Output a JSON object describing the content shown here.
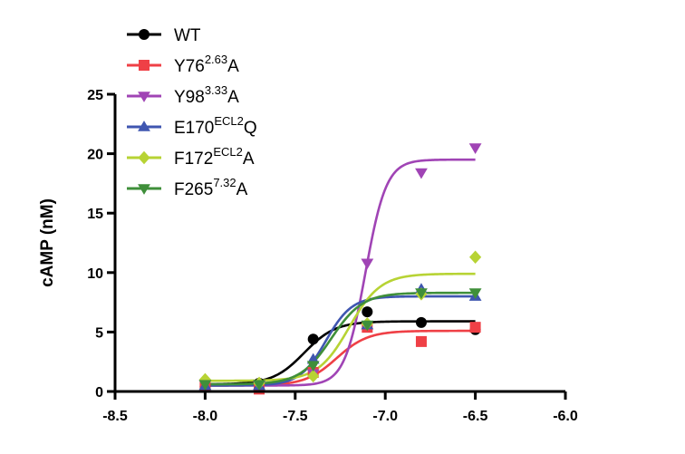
{
  "chart_data": {
    "type": "scatter",
    "xlabel": "",
    "ylabel": "cAMP (nM)",
    "xlim": [
      -8.5,
      -6.0
    ],
    "ylim": [
      0,
      25
    ],
    "xticks": [
      -8.5,
      -8.0,
      -7.5,
      -7.0,
      -6.5,
      -6.0
    ],
    "xtick_labels": [
      "-8.5",
      "-8.0",
      "-7.5",
      "-7.0",
      "-6.5",
      "-6.0"
    ],
    "yticks": [
      0,
      5,
      10,
      15,
      20,
      25
    ],
    "ytick_labels": [
      "0",
      "5",
      "10",
      "15",
      "20",
      "25"
    ],
    "legend_position": "top-left",
    "series": [
      {
        "name": "WT",
        "name_sup": "",
        "name_suffix": "",
        "color": "#000000",
        "marker": "circle",
        "x": [
          -8.0,
          -7.7,
          -7.4,
          -7.1,
          -6.8,
          -6.5
        ],
        "y": [
          0.4,
          0.7,
          4.4,
          6.7,
          5.8,
          5.2
        ],
        "fit": {
          "bottom": 0.6,
          "top": 5.9,
          "logec50": -7.45,
          "hill": 5.0
        }
      },
      {
        "name": "Y76",
        "name_sup": "2.63",
        "name_suffix": "A",
        "color": "#ef4046",
        "marker": "square",
        "x": [
          -8.0,
          -7.7,
          -7.4,
          -7.1,
          -6.8,
          -6.5
        ],
        "y": [
          0.5,
          0.2,
          1.6,
          5.4,
          4.2,
          5.4
        ],
        "fit": {
          "bottom": 0.5,
          "top": 5.1,
          "logec50": -7.27,
          "hill": 5.0
        }
      },
      {
        "name": "Y98",
        "name_sup": "3.33",
        "name_suffix": "A",
        "color": "#a044b5",
        "marker": "triangle-down",
        "x": [
          -8.0,
          -7.7,
          -7.4,
          -7.1,
          -6.8,
          -6.5
        ],
        "y": [
          0.6,
          0.5,
          1.5,
          10.8,
          18.4,
          20.5
        ],
        "fit": {
          "bottom": 0.5,
          "top": 19.5,
          "logec50": -7.11,
          "hill": 7.5
        }
      },
      {
        "name": "E170",
        "name_sup": "ECL2",
        "name_suffix": "Q",
        "color": "#3f56b0",
        "marker": "triangle-up",
        "x": [
          -8.0,
          -7.7,
          -7.4,
          -7.1,
          -6.8,
          -6.5
        ],
        "y": [
          0.5,
          0.5,
          2.7,
          5.6,
          8.6,
          8.0
        ],
        "fit": {
          "bottom": 0.5,
          "top": 8.0,
          "logec50": -7.33,
          "hill": 6.0
        }
      },
      {
        "name": "F172",
        "name_sup": "ECL2",
        "name_suffix": "A",
        "color": "#b7d334",
        "marker": "diamond",
        "x": [
          -8.0,
          -7.7,
          -7.4,
          -7.1,
          -6.8,
          -6.5
        ],
        "y": [
          1.0,
          0.7,
          1.3,
          5.7,
          8.2,
          11.3
        ],
        "fit": {
          "bottom": 0.9,
          "top": 9.9,
          "logec50": -7.2,
          "hill": 5.0
        }
      },
      {
        "name": "F265",
        "name_sup": "7.32",
        "name_suffix": "A",
        "color": "#3f8f3a",
        "marker": "triangle-down",
        "x": [
          -8.0,
          -7.7,
          -7.4,
          -7.1,
          -6.8,
          -6.5
        ],
        "y": [
          0.6,
          0.6,
          2.2,
          5.6,
          8.3,
          8.3
        ],
        "fit": {
          "bottom": 0.6,
          "top": 8.3,
          "logec50": -7.3,
          "hill": 5.0
        }
      }
    ]
  }
}
